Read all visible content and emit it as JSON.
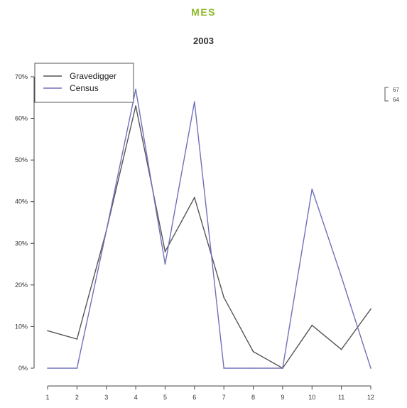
{
  "header": {
    "category": "MES"
  },
  "chart_data": {
    "type": "line",
    "title": "2003",
    "xlabel": "",
    "ylabel": "",
    "categories": [
      "1",
      "2",
      "3",
      "4",
      "5",
      "6",
      "7",
      "8",
      "9",
      "10",
      "11",
      "12"
    ],
    "x": [
      1,
      2,
      3,
      4,
      5,
      6,
      7,
      8,
      9,
      10,
      11,
      12
    ],
    "yticks": [
      "0%",
      "10%",
      "20%",
      "30%",
      "40%",
      "50%",
      "60%",
      "70%"
    ],
    "ylim": [
      0,
      70
    ],
    "xlim": [
      1,
      12
    ],
    "grid": false,
    "legend_position": "top-left",
    "series": [
      {
        "name": "Gravedigger",
        "color": "#555555",
        "values": [
          9,
          7,
          33,
          63,
          28,
          41,
          17,
          4,
          0,
          10.3,
          4.5,
          14.2
        ]
      },
      {
        "name": "Census",
        "color": "#7070bb",
        "values": [
          0,
          0,
          33,
          67,
          25,
          64,
          0,
          0,
          0,
          43,
          22,
          0
        ]
      }
    ],
    "side_annotation": {
      "values": [
        "67",
        "64"
      ]
    }
  }
}
